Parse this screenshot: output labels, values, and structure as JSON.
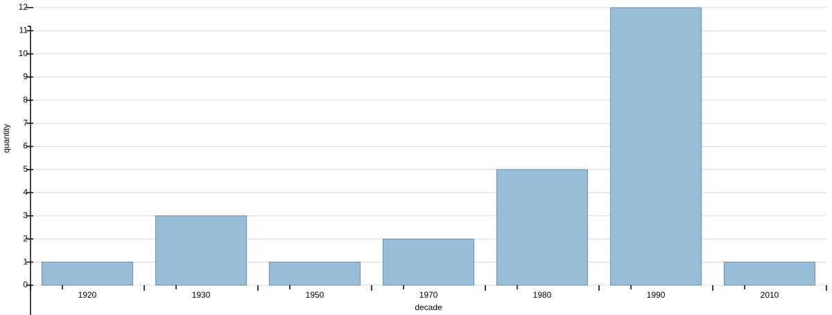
{
  "chart_data": {
    "type": "bar",
    "x_label": "decade",
    "y_label": "quantity",
    "categories": [
      "1920",
      "1930",
      "1950",
      "1970",
      "1980",
      "1990",
      "2010"
    ],
    "values": [
      1,
      3,
      1,
      2,
      5,
      12,
      1
    ],
    "color": "#97bdd9",
    "ylim": [
      0,
      12
    ],
    "yticks": [
      0,
      1,
      2,
      3,
      4,
      5,
      6,
      7,
      8,
      9,
      10,
      11,
      12
    ],
    "grid": true
  }
}
